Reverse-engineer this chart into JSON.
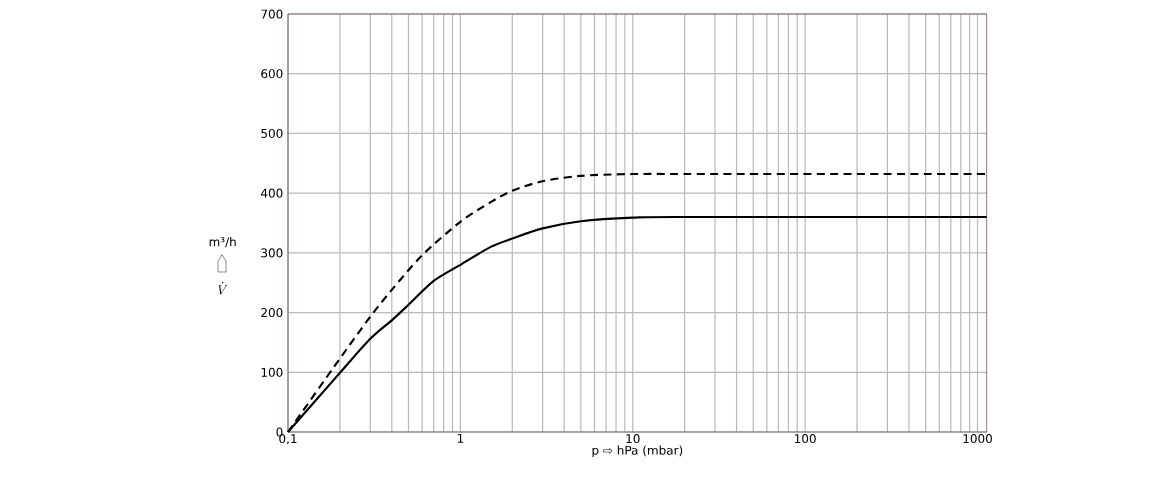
{
  "chart_data": {
    "type": "line",
    "xlabel": "p ⇨ hPa (mbar)",
    "ylabel": "m³/h",
    "annotations": [
      "\\dot{V}"
    ],
    "log": "x",
    "grid": true,
    "marker": "none",
    "xlim": [
      0.1,
      1130
    ],
    "ylim": [
      0,
      700
    ],
    "xticks": [
      {
        "value": 0.1,
        "label": "0,1"
      },
      1,
      10,
      100,
      1000
    ],
    "yticks": [
      0,
      100,
      200,
      300,
      400,
      500,
      600,
      700
    ],
    "series": [
      {
        "color": "#000000",
        "line_style": "dashed",
        "x": [
          0.1,
          0.2,
          0.3,
          0.4,
          0.6,
          1,
          1.5,
          2,
          3,
          5,
          10,
          30,
          1130
        ],
        "values": [
          0,
          123,
          193,
          238,
          296,
          352,
          385,
          404,
          420,
          429,
          432,
          432,
          432
        ]
      },
      {
        "color": "#000000",
        "line_style": "solid",
        "x": [
          0.1,
          0.2,
          0.3,
          0.4,
          0.5,
          0.7,
          1,
          1.5,
          2,
          3,
          5,
          10,
          20,
          1130
        ],
        "values": [
          0,
          99,
          156,
          187,
          213,
          253,
          280,
          310,
          324,
          341,
          353,
          359,
          360,
          360
        ]
      }
    ]
  }
}
